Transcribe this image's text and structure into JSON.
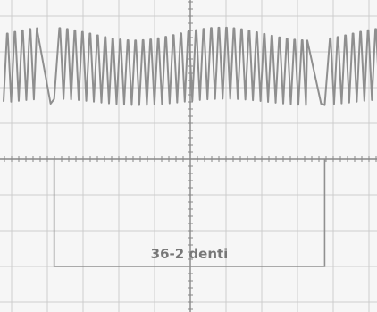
{
  "chart_data": {
    "type": "line",
    "title": "",
    "xlabel": "",
    "ylabel": "",
    "grid": true,
    "annotation": {
      "label": "36-2 denti"
    },
    "series": [
      {
        "name": "",
        "teeth_per_revolution": 36,
        "missing_teeth": 2,
        "gap_positions_div": [
          0.88,
          8.45
        ],
        "tooth_pitch_div": 0.212,
        "amplitude_div": 1.9,
        "baseline_div": 2.55,
        "xlim": [
          0,
          10.5
        ],
        "ylim": [
          -4,
          4
        ]
      }
    ]
  },
  "colors": {
    "background": "#f6f6f6",
    "grid": "#cdcdcd",
    "axes": "#888888",
    "trace": "#8f8f8f",
    "annotation": "#909090",
    "label": "#777777"
  }
}
